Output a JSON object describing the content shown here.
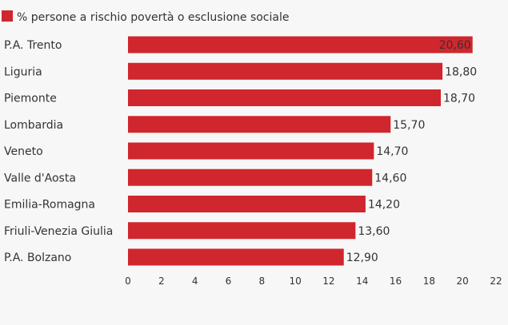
{
  "chart_data": {
    "type": "bar",
    "orientation": "horizontal",
    "categories": [
      "P.A. Trento",
      "Liguria",
      "Piemonte",
      "Lombardia",
      "Veneto",
      "Valle d'Aosta",
      "Emilia-Romagna",
      "Friuli-Venezia Giulia",
      "P.A. Bolzano"
    ],
    "series": [
      {
        "name": "% persone a rischio povertà o esclusione sociale",
        "values": [
          20.6,
          18.8,
          18.7,
          15.7,
          14.7,
          14.6,
          14.2,
          13.6,
          12.9
        ],
        "value_labels": [
          "20,60",
          "18,80",
          "18,70",
          "15,70",
          "14,70",
          "14,60",
          "14,20",
          "13,60",
          "12,90"
        ],
        "color": "#d0262e"
      }
    ],
    "x_ticks": [
      "0",
      "2",
      "4",
      "6",
      "8",
      "10",
      "12",
      "14",
      "16",
      "18",
      "20",
      "22"
    ],
    "xlim": [
      0,
      22
    ],
    "grid": false,
    "legend": "top-left",
    "background": "#f7f7f7"
  }
}
